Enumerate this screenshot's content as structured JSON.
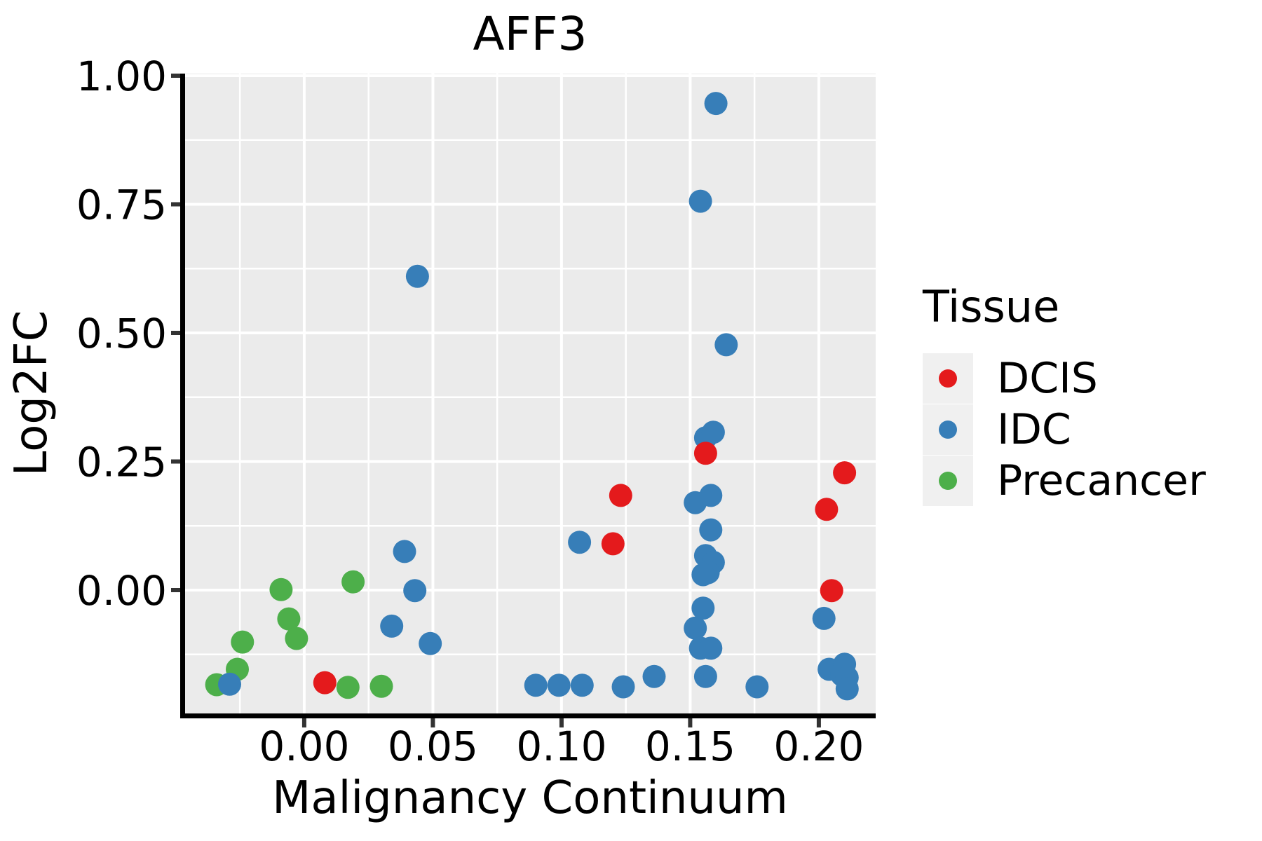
{
  "title": "AFF3",
  "colors": {
    "panel_background": "#EBEBEB",
    "grid": "#FFFFFF",
    "axis_line": "#000000",
    "tick_mark": "#333333",
    "dcis_red": "#E41A1C",
    "idc_blue": "#377EB8",
    "precancer_green": "#4DAF4A",
    "legend_key_background": "#F0F0F0"
  },
  "legend": {
    "title": "Tissue",
    "items": [
      {
        "label": "DCIS",
        "color": "#E41A1C"
      },
      {
        "label": "IDC",
        "color": "#377EB8"
      },
      {
        "label": "Precancer",
        "color": "#4DAF4A"
      }
    ]
  },
  "chart_data": {
    "type": "scatter",
    "title": "AFF3",
    "xlabel": "Malignancy Continuum",
    "ylabel": "Log2FC",
    "xlim": [
      -0.0463,
      0.2221
    ],
    "ylim": [
      -0.2398,
      1.0041
    ],
    "grid": true,
    "legend_position": "right",
    "x_ticks": {
      "values": [
        0.0,
        0.05,
        0.1,
        0.15,
        0.2
      ],
      "labels": [
        "0.00",
        "0.05",
        "0.10",
        "0.15",
        "0.20"
      ]
    },
    "x_minor": [
      -0.025,
      0.025,
      0.075,
      0.125,
      0.175
    ],
    "y_ticks": {
      "values": [
        0.0,
        0.25,
        0.5,
        0.75,
        1.0
      ],
      "labels": [
        "0.00",
        "0.25",
        "0.50",
        "0.75",
        "1.00"
      ]
    },
    "y_minor": [
      -0.125,
      0.125,
      0.375,
      0.625,
      0.875
    ],
    "series": [
      {
        "name": "Precancer",
        "color": "#4DAF4A",
        "points": [
          [
            -0.034,
            -0.184
          ],
          [
            -0.026,
            -0.154
          ],
          [
            -0.024,
            -0.101
          ],
          [
            -0.006,
            -0.056
          ],
          [
            -0.003,
            -0.094
          ],
          [
            -0.009,
            0.001
          ],
          [
            0.019,
            0.016
          ],
          [
            0.017,
            -0.189
          ],
          [
            0.03,
            -0.187
          ]
        ]
      },
      {
        "name": "IDC",
        "color": "#377EB8",
        "points": [
          [
            -0.029,
            -0.183
          ],
          [
            0.034,
            -0.07
          ],
          [
            0.049,
            -0.104
          ],
          [
            0.039,
            0.075
          ],
          [
            0.043,
            -0.001
          ],
          [
            0.044,
            0.61
          ],
          [
            0.09,
            -0.185
          ],
          [
            0.099,
            -0.185
          ],
          [
            0.108,
            -0.185
          ],
          [
            0.124,
            -0.188
          ],
          [
            0.136,
            -0.168
          ],
          [
            0.107,
            0.093
          ],
          [
            0.152,
            0.17
          ],
          [
            0.158,
            0.184
          ],
          [
            0.158,
            0.117
          ],
          [
            0.16,
            0.946
          ],
          [
            0.154,
            0.756
          ],
          [
            0.164,
            0.477
          ],
          [
            0.156,
            0.296
          ],
          [
            0.159,
            0.307
          ],
          [
            0.156,
            0.067
          ],
          [
            0.159,
            0.054
          ],
          [
            0.157,
            0.034
          ],
          [
            0.155,
            0.03
          ],
          [
            0.155,
            -0.035
          ],
          [
            0.152,
            -0.074
          ],
          [
            0.154,
            -0.113
          ],
          [
            0.158,
            -0.113
          ],
          [
            0.156,
            -0.168
          ],
          [
            0.176,
            -0.188
          ],
          [
            0.202,
            -0.055
          ],
          [
            0.204,
            -0.154
          ],
          [
            0.209,
            -0.165
          ],
          [
            0.21,
            -0.144
          ],
          [
            0.211,
            -0.17
          ],
          [
            0.211,
            -0.192
          ]
        ]
      },
      {
        "name": "DCIS",
        "color": "#E41A1C",
        "points": [
          [
            0.008,
            -0.18
          ],
          [
            0.12,
            0.09
          ],
          [
            0.123,
            0.184
          ],
          [
            0.156,
            0.266
          ],
          [
            0.21,
            0.228
          ],
          [
            0.203,
            0.157
          ],
          [
            0.205,
            -0.001
          ]
        ]
      }
    ]
  }
}
